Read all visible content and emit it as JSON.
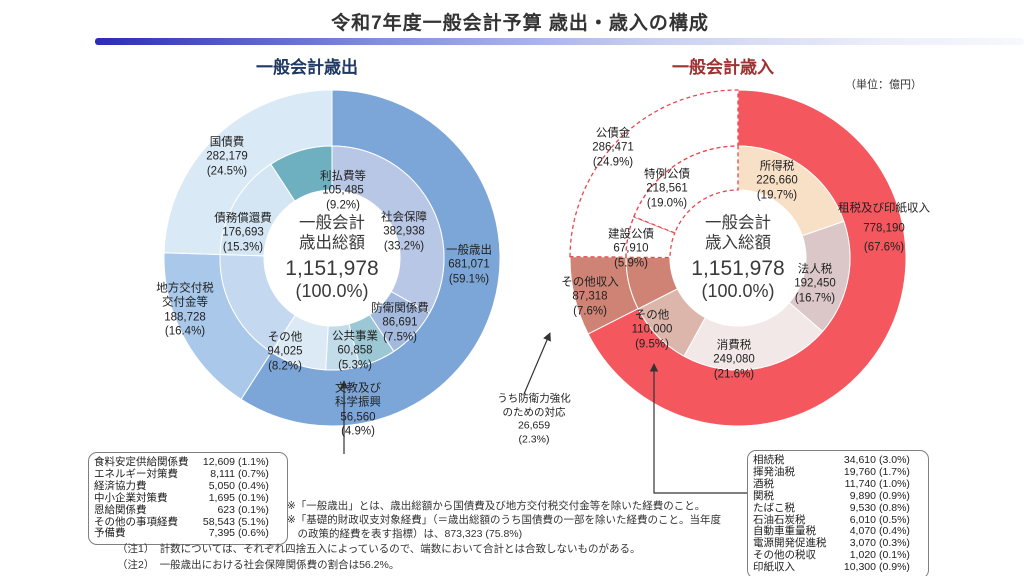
{
  "page": {
    "title": "令和7年度一般会計予算 歳出・歳入の構成",
    "unit_label": "（単位：億円）"
  },
  "chart_data": [
    {
      "type": "donut",
      "id": "expenditure",
      "title": "一般会計歳出",
      "total": 1151978,
      "center": {
        "line1": "一般会計",
        "line2": "歳出総額",
        "value": "1,151,978",
        "pct": "(100.0%)"
      },
      "outer_ring": [
        {
          "name": "一般歳出",
          "value": "681,071",
          "pct": "(59.1%)",
          "share": 59.1,
          "color": "#7CA6D8"
        },
        {
          "name": "地方交付税交付金等",
          "value": "188,728",
          "pct": "(16.4%)",
          "share": 16.4,
          "color": "#A9C8EA"
        },
        {
          "name": "国債費",
          "value": "282,179",
          "pct": "(24.5%)",
          "share": 24.5,
          "color": "#D9E9F5"
        }
      ],
      "inner_ring": [
        {
          "name": "社会保障",
          "value": "382,938",
          "pct": "(33.2%)",
          "share": 33.2,
          "color": "#B9C7E6"
        },
        {
          "name": "防衛関係費",
          "value": "86,691",
          "pct": "(7.5%)",
          "share": 7.5,
          "color": "#A3B9DE"
        },
        {
          "name": "公共事業",
          "value": "60,858",
          "pct": "(5.3%)",
          "share": 5.3,
          "color": "#9CC8D6"
        },
        {
          "name": "文教及び科学振興",
          "value": "56,560",
          "pct": "(4.9%)",
          "share": 4.9,
          "color": "#C2DCEA"
        },
        {
          "name": "その他",
          "value": "94,025",
          "pct": "(8.2%)",
          "share": 8.2,
          "color": "#DCEAF5"
        },
        {
          "name": "地方交付税交付金等",
          "share": 16.4,
          "color": "#C4D9EF",
          "label_hidden": true
        },
        {
          "name": "債務償還費",
          "value": "176,693",
          "pct": "(15.3%)",
          "share": 15.3,
          "color": "#D4E5F3"
        },
        {
          "name": "利払費等",
          "value": "105,485",
          "pct": "(9.2%)",
          "share": 9.2,
          "color": "#6FB0C0"
        }
      ]
    },
    {
      "type": "donut",
      "id": "revenue",
      "title": "一般会計歳入",
      "total": 1151978,
      "center": {
        "line1": "一般会計",
        "line2": "歳入総額",
        "value": "1,151,978",
        "pct": "(100.0%)"
      },
      "outer_ring": [
        {
          "name": "租税及び印紙収入",
          "value": "778,190",
          "pct": "(67.6%)",
          "share": 67.6,
          "color": "#F4575D"
        },
        {
          "name": "その他収入",
          "value": "87,318",
          "pct": "(7.6%)",
          "share": 7.6,
          "color": "#CE8375"
        },
        {
          "name": "公債金",
          "value": "286,471",
          "pct": "(24.9%)",
          "share": 24.9,
          "color": "#FFFFFF",
          "dashed": true
        }
      ],
      "inner_ring": [
        {
          "name": "所得税",
          "value": "226,660",
          "pct": "(19.7%)",
          "share": 19.7,
          "color": "#F8E0C6"
        },
        {
          "name": "法人税",
          "value": "192,450",
          "pct": "(16.7%)",
          "share": 16.7,
          "color": "#DBC7C7"
        },
        {
          "name": "消費税",
          "value": "249,080",
          "pct": "(21.6%)",
          "share": 21.6,
          "color": "#F3E8E8"
        },
        {
          "name": "その他",
          "value": "110,000",
          "pct": "(9.5%)",
          "share": 9.5,
          "color": "#DDB6AB"
        },
        {
          "name": "その他収入",
          "share": 7.6,
          "color": "#CE8375",
          "label_hidden": true
        },
        {
          "name": "建設公債",
          "value": "67,910",
          "pct": "(5.9%)",
          "share": 5.9,
          "color": "#FFFFFF",
          "dashed": true
        },
        {
          "name": "特例公債",
          "value": "218,561",
          "pct": "(19.0%)",
          "share": 19.0,
          "color": "#FFFFFF",
          "dashed": true
        }
      ],
      "annotation": {
        "text": "うち防衛力強化のための対応",
        "value": "26,659",
        "pct": "(2.3%)"
      }
    }
  ],
  "expenditure_breakdown_table": {
    "rows": [
      {
        "name": "食料安定供給関係費",
        "value": "12,609",
        "pct": "(1.1%)"
      },
      {
        "name": "エネルギー対策費",
        "value": "8,111",
        "pct": "(0.7%)"
      },
      {
        "name": "経済協力費",
        "value": "5,050",
        "pct": "(0.4%)"
      },
      {
        "name": "中小企業対策費",
        "value": "1,695",
        "pct": "(0.1%)"
      },
      {
        "name": "恩給関係費",
        "value": "623",
        "pct": "(0.1%)"
      },
      {
        "name": "その他の事項経費",
        "value": "58,543",
        "pct": "(5.1%)"
      },
      {
        "name": "予備費",
        "value": "7,395",
        "pct": "(0.6%)"
      }
    ]
  },
  "revenue_breakdown_table": {
    "rows": [
      {
        "name": "相続税",
        "value": "34,610",
        "pct": "(3.0%)"
      },
      {
        "name": "揮発油税",
        "value": "19,760",
        "pct": "(1.7%)"
      },
      {
        "name": "酒税",
        "value": "11,740",
        "pct": "(1.0%)"
      },
      {
        "name": "関税",
        "value": "9,890",
        "pct": "(0.9%)"
      },
      {
        "name": "たばこ税",
        "value": "9,530",
        "pct": "(0.8%)"
      },
      {
        "name": "石油石炭税",
        "value": "6,010",
        "pct": "(0.5%)"
      },
      {
        "name": "自動車重量税",
        "value": "4,070",
        "pct": "(0.4%)"
      },
      {
        "name": "電源開発促進税",
        "value": "3,070",
        "pct": "(0.3%)"
      },
      {
        "name": "その他の税収",
        "value": "1,020",
        "pct": "(0.1%)"
      },
      {
        "name": "印紙収入",
        "value": "10,300",
        "pct": "(0.9%)"
      }
    ]
  },
  "notes": [
    "※「一般歳出」とは、歳出総額から国債費及び地方交付税交付金等を除いた経費のこと。",
    "※「基礎的財政収支対象経費」（＝歳出総額のうち国債費の一部を除いた経費のこと。当年度",
    "　の政策的経費を表す指標）は、873,323 (75.8%)"
  ],
  "footnotes": [
    "（注1）　計数については、それぞれ四捨五入によっているので、端数において合計とは合致しないものがある。",
    "（注2）　一般歳出における社会保障関係費の割合は56.2%。"
  ]
}
